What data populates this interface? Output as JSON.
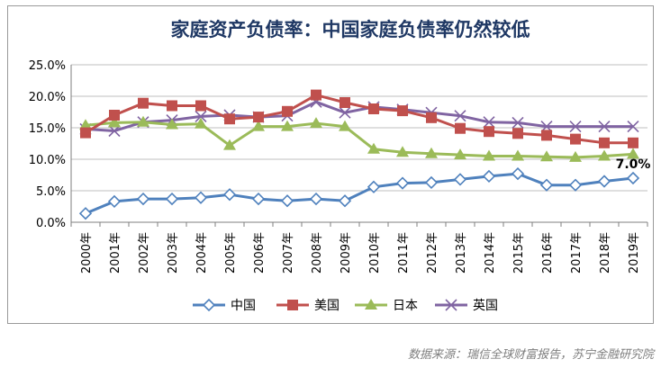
{
  "chart_data": {
    "type": "line",
    "title": "家庭资产负债率：中国家庭负债率仍然较低",
    "categories": [
      "2000年",
      "2001年",
      "2002年",
      "2003年",
      "2004年",
      "2005年",
      "2006年",
      "2007年",
      "2008年",
      "2009年",
      "2010年",
      "2011年",
      "2012年",
      "2013年",
      "2014年",
      "2015年",
      "2016年",
      "2017年",
      "2018年",
      "2019年"
    ],
    "ylim": [
      0,
      25
    ],
    "yticks": [
      "0.0%",
      "5.0%",
      "10.0%",
      "15.0%",
      "20.0%",
      "25.0%"
    ],
    "grid": true,
    "legend": "bottom",
    "series": [
      {
        "name": "中国",
        "color": "#4f81bd",
        "marker": "diamond",
        "values": [
          1.4,
          3.3,
          3.7,
          3.7,
          3.9,
          4.4,
          3.7,
          3.4,
          3.7,
          3.4,
          5.6,
          6.2,
          6.3,
          6.8,
          7.3,
          7.7,
          5.9,
          5.9,
          6.5,
          7.0
        ]
      },
      {
        "name": "美国",
        "color": "#c0504d",
        "marker": "square",
        "values": [
          14.2,
          17.0,
          18.9,
          18.5,
          18.5,
          16.4,
          16.7,
          17.6,
          20.2,
          19.0,
          18.0,
          17.7,
          16.6,
          14.9,
          14.4,
          14.1,
          13.8,
          13.2,
          12.6,
          12.6
        ]
      },
      {
        "name": "日本",
        "color": "#9bbb59",
        "marker": "triangle",
        "values": [
          15.4,
          15.8,
          15.9,
          15.5,
          15.6,
          12.2,
          15.2,
          15.2,
          15.7,
          15.2,
          11.6,
          11.1,
          10.9,
          10.7,
          10.5,
          10.5,
          10.4,
          10.3,
          10.5,
          10.8
        ]
      },
      {
        "name": "英国",
        "color": "#8064a2",
        "marker": "x",
        "values": [
          14.8,
          14.5,
          15.9,
          16.2,
          16.8,
          17.0,
          16.7,
          16.9,
          19.1,
          17.4,
          18.3,
          17.9,
          17.4,
          16.9,
          15.9,
          15.8,
          15.2,
          15.2,
          15.2,
          15.2
        ]
      }
    ],
    "annotations": [
      {
        "series": "中国",
        "category": "2019年",
        "text": "7.0%"
      }
    ]
  },
  "source": "数据来源：瑞信全球财富报告，苏宁金融研究院"
}
